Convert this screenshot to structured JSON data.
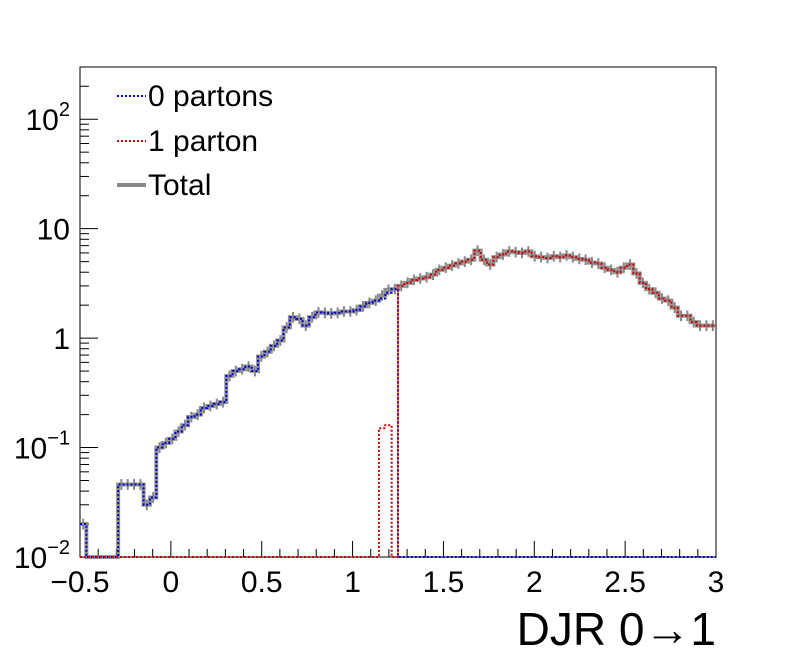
{
  "chart_data": {
    "type": "line",
    "subtype": "step-histogram",
    "title": "",
    "xlabel": "DJR 0→1",
    "ylabel": "",
    "xlim": [
      -0.5,
      3.0
    ],
    "ylim": [
      0.01,
      300
    ],
    "yscale": "log",
    "legend_position": "top-left",
    "x_ticks": [
      {
        "value": -0.5,
        "label": "−0.5"
      },
      {
        "value": 0,
        "label": "0"
      },
      {
        "value": 0.5,
        "label": "0.5"
      },
      {
        "value": 1,
        "label": "1"
      },
      {
        "value": 1.5,
        "label": "1.5"
      },
      {
        "value": 2,
        "label": "2"
      },
      {
        "value": 2.5,
        "label": "2.5"
      },
      {
        "value": 3,
        "label": "3"
      }
    ],
    "y_ticks": [
      {
        "value": 0.01,
        "base": "10",
        "exp": "−2"
      },
      {
        "value": 0.1,
        "base": "10",
        "exp": "−1"
      },
      {
        "value": 1,
        "base": "1",
        "exp": ""
      },
      {
        "value": 10,
        "base": "10",
        "exp": ""
      },
      {
        "value": 100,
        "base": "10",
        "exp": "2"
      }
    ],
    "bin_edges_start": -0.5,
    "bin_width": 0.035,
    "series": [
      {
        "name": "0 partons",
        "color": "#0000cc",
        "style": "dotted",
        "values": [
          0.02,
          0.01,
          0.01,
          0.01,
          0.01,
          0.01,
          0.046,
          0.046,
          0.046,
          0.046,
          0.03,
          0.035,
          0.1,
          0.11,
          0.12,
          0.14,
          0.16,
          0.19,
          0.2,
          0.23,
          0.24,
          0.25,
          0.26,
          0.45,
          0.5,
          0.52,
          0.55,
          0.5,
          0.68,
          0.75,
          0.85,
          0.95,
          1.25,
          1.55,
          1.5,
          1.3,
          1.55,
          1.72,
          1.7,
          1.68,
          1.7,
          1.75,
          1.75,
          1.8,
          1.95,
          2.1,
          2.2,
          2.3,
          2.6,
          2.8,
          0.01,
          0.01,
          0.01,
          0.01,
          0.01,
          0.01,
          0.01,
          0.01,
          0.01,
          0.01,
          0.01,
          0.01,
          0.01,
          0.01,
          0.01,
          0.01,
          0.01,
          0.01,
          0.01,
          0.01,
          0.01,
          0.01,
          0.01,
          0.01,
          0.01,
          0.01,
          0.01,
          0.01,
          0.01,
          0.01,
          0.01,
          0.01,
          0.01,
          0.01,
          0.01,
          0.01,
          0.01,
          0.01,
          0.01,
          0.01,
          0.01,
          0.01,
          0.01,
          0.01,
          0.01,
          0.01,
          0.01,
          0.01,
          0.01,
          0.01
        ]
      },
      {
        "name": "1 parton",
        "color": "#cc0000",
        "style": "dotted",
        "values": [
          0.01,
          0.01,
          0.01,
          0.01,
          0.01,
          0.01,
          0.01,
          0.01,
          0.01,
          0.01,
          0.01,
          0.01,
          0.01,
          0.01,
          0.01,
          0.01,
          0.01,
          0.01,
          0.01,
          0.01,
          0.01,
          0.01,
          0.01,
          0.01,
          0.01,
          0.01,
          0.01,
          0.01,
          0.01,
          0.01,
          0.01,
          0.01,
          0.01,
          0.01,
          0.01,
          0.01,
          0.01,
          0.01,
          0.01,
          0.01,
          0.01,
          0.01,
          0.01,
          0.01,
          0.01,
          0.01,
          0.01,
          0.15,
          0.16,
          0.01,
          3.0,
          3.2,
          3.4,
          3.5,
          3.6,
          3.8,
          4.2,
          4.4,
          4.6,
          4.8,
          5.0,
          5.2,
          6.3,
          5.2,
          4.7,
          5.5,
          5.8,
          6.2,
          6.1,
          6.0,
          6.2,
          5.6,
          5.5,
          5.4,
          5.6,
          5.5,
          5.7,
          5.5,
          5.3,
          5.2,
          4.9,
          4.8,
          4.4,
          4.2,
          4.0,
          4.4,
          4.7,
          3.9,
          3.2,
          2.8,
          2.6,
          2.3,
          2.2,
          1.9,
          1.6,
          1.6,
          1.4,
          1.3,
          1.3,
          1.3
        ]
      },
      {
        "name": "Total",
        "color": "#888888",
        "style": "solid",
        "values": [
          0.02,
          0.01,
          0.01,
          0.01,
          0.01,
          0.01,
          0.046,
          0.046,
          0.046,
          0.046,
          0.03,
          0.035,
          0.1,
          0.11,
          0.12,
          0.14,
          0.16,
          0.19,
          0.2,
          0.23,
          0.24,
          0.25,
          0.26,
          0.45,
          0.5,
          0.52,
          0.55,
          0.5,
          0.68,
          0.75,
          0.85,
          0.95,
          1.25,
          1.55,
          1.5,
          1.3,
          1.55,
          1.72,
          1.7,
          1.68,
          1.7,
          1.75,
          1.75,
          1.8,
          1.95,
          2.1,
          2.2,
          2.45,
          2.76,
          2.8,
          3.0,
          3.2,
          3.4,
          3.5,
          3.6,
          3.8,
          4.2,
          4.4,
          4.6,
          4.8,
          5.0,
          5.2,
          6.3,
          5.2,
          4.7,
          5.5,
          5.8,
          6.2,
          6.1,
          6.0,
          6.2,
          5.6,
          5.5,
          5.4,
          5.6,
          5.5,
          5.7,
          5.5,
          5.3,
          5.2,
          4.9,
          4.8,
          4.4,
          4.2,
          4.0,
          4.4,
          4.7,
          3.9,
          3.2,
          2.8,
          2.6,
          2.3,
          2.2,
          1.9,
          1.6,
          1.6,
          1.4,
          1.3,
          1.3,
          1.3
        ]
      }
    ]
  }
}
